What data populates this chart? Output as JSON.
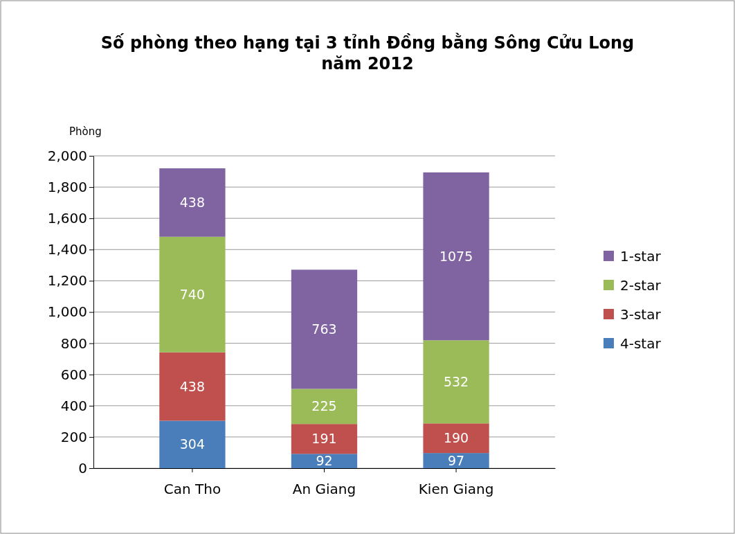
{
  "chart_data": {
    "type": "bar",
    "title": "Số phòng theo hạng tại 3 tỉnh Đồng bằng Sông Cửu Long năm 2012",
    "ylabel": "Phòng",
    "categories": [
      "Can Tho",
      "An Giang",
      "Kien Giang"
    ],
    "series": [
      {
        "name": "4-star",
        "color": "#4a7ebb",
        "values": [
          304,
          92,
          97
        ]
      },
      {
        "name": "3-star",
        "color": "#c0504d",
        "values": [
          438,
          191,
          190
        ]
      },
      {
        "name": "2-star",
        "color": "#9bbb59",
        "values": [
          740,
          225,
          532
        ]
      },
      {
        "name": "1-star",
        "color": "#8064a2",
        "values": [
          438,
          763,
          1075
        ]
      }
    ],
    "stacked": true,
    "data_labels": true,
    "ylim": [
      0,
      2000
    ],
    "yticks": [
      0,
      200,
      400,
      600,
      800,
      {
        "value": 1000,
        "label": "1,000"
      },
      {
        "value": 1200,
        "label": "1,200"
      },
      {
        "value": 1400,
        "label": "1,400"
      },
      {
        "value": 1600,
        "label": "1,600"
      },
      {
        "value": 1800,
        "label": "1,800"
      },
      {
        "value": 2000,
        "label": "2,000"
      }
    ],
    "grid": "y",
    "legend": "right"
  }
}
